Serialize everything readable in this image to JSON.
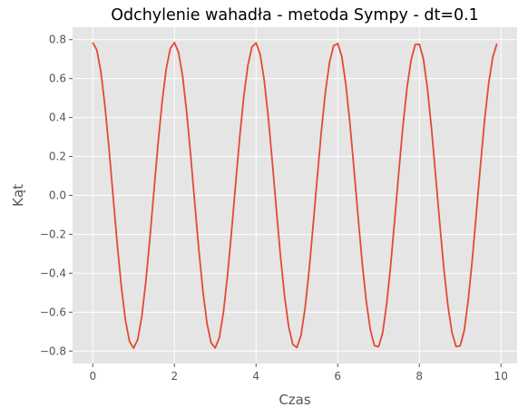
{
  "chart_data": {
    "type": "line",
    "title": "Odchylenie wahadła - metoda Sympy - dt=0.1",
    "xlabel": "Czas",
    "ylabel": "Kąt",
    "xlim": [
      -0.495,
      10.395
    ],
    "ylim": [
      -0.864,
      0.864
    ],
    "xticks": [
      0,
      2,
      4,
      6,
      8,
      10
    ],
    "xtick_labels": [
      "0",
      "2",
      "4",
      "6",
      "8",
      "10"
    ],
    "yticks": [
      -0.8,
      -0.6,
      -0.4,
      -0.2,
      0.0,
      0.2,
      0.4,
      0.6,
      0.8
    ],
    "ytick_labels": [
      "−0.8",
      "−0.6",
      "−0.4",
      "−0.2",
      "0.0",
      "0.2",
      "0.4",
      "0.6",
      "0.8"
    ],
    "grid": true,
    "series": [
      {
        "color": "#E24A33",
        "x": [
          0.0,
          0.1,
          0.2,
          0.3,
          0.4,
          0.5,
          0.6,
          0.7,
          0.8,
          0.9,
          1.0,
          1.1,
          1.2,
          1.3,
          1.4,
          1.5,
          1.6,
          1.7,
          1.8,
          1.9,
          2.0,
          2.1,
          2.2,
          2.3,
          2.4,
          2.5,
          2.6,
          2.7,
          2.8,
          2.9,
          3.0,
          3.1,
          3.2,
          3.3,
          3.4,
          3.5,
          3.6,
          3.7,
          3.8,
          3.9,
          4.0,
          4.1,
          4.2,
          4.3,
          4.4,
          4.5,
          4.6,
          4.7,
          4.8,
          4.9,
          5.0,
          5.1,
          5.2,
          5.3,
          5.4,
          5.5,
          5.6,
          5.7,
          5.8,
          5.9,
          6.0,
          6.1,
          6.2,
          6.3,
          6.4,
          6.5,
          6.6,
          6.7,
          6.8,
          6.9,
          7.0,
          7.1,
          7.2,
          7.3,
          7.4,
          7.5,
          7.6,
          7.7,
          7.8,
          7.9,
          8.0,
          8.1,
          8.2,
          8.3,
          8.4,
          8.5,
          8.6,
          8.7,
          8.8,
          8.9,
          9.0,
          9.1,
          9.2,
          9.3,
          9.4,
          9.5,
          9.6,
          9.7,
          9.8,
          9.9
        ],
        "y": [
          0.785,
          0.746,
          0.633,
          0.456,
          0.235,
          -0.01,
          -0.252,
          -0.47,
          -0.642,
          -0.751,
          -0.785,
          -0.741,
          -0.623,
          -0.442,
          -0.218,
          0.027,
          0.268,
          0.483,
          0.651,
          0.755,
          0.785,
          0.736,
          0.613,
          0.428,
          0.201,
          -0.044,
          -0.284,
          -0.496,
          -0.66,
          -0.759,
          -0.784,
          -0.731,
          -0.602,
          -0.413,
          -0.184,
          0.061,
          0.3,
          0.509,
          0.668,
          0.763,
          0.783,
          0.726,
          0.591,
          0.399,
          0.167,
          -0.078,
          -0.316,
          -0.521,
          -0.676,
          -0.766,
          -0.782,
          -0.72,
          -0.58,
          -0.384,
          -0.15,
          0.094,
          0.331,
          0.533,
          0.684,
          0.769,
          0.78,
          0.714,
          0.569,
          0.369,
          0.133,
          -0.111,
          -0.346,
          -0.545,
          -0.691,
          -0.772,
          -0.778,
          -0.708,
          -0.557,
          -0.354,
          -0.116,
          0.128,
          0.361,
          0.556,
          0.698,
          0.775,
          0.776,
          0.701,
          0.545,
          0.339,
          0.099,
          -0.144,
          -0.376,
          -0.567,
          -0.705,
          -0.777,
          -0.773,
          -0.694,
          -0.533,
          -0.323,
          -0.082,
          0.16,
          0.39,
          0.578,
          0.711,
          0.779
        ]
      }
    ]
  }
}
